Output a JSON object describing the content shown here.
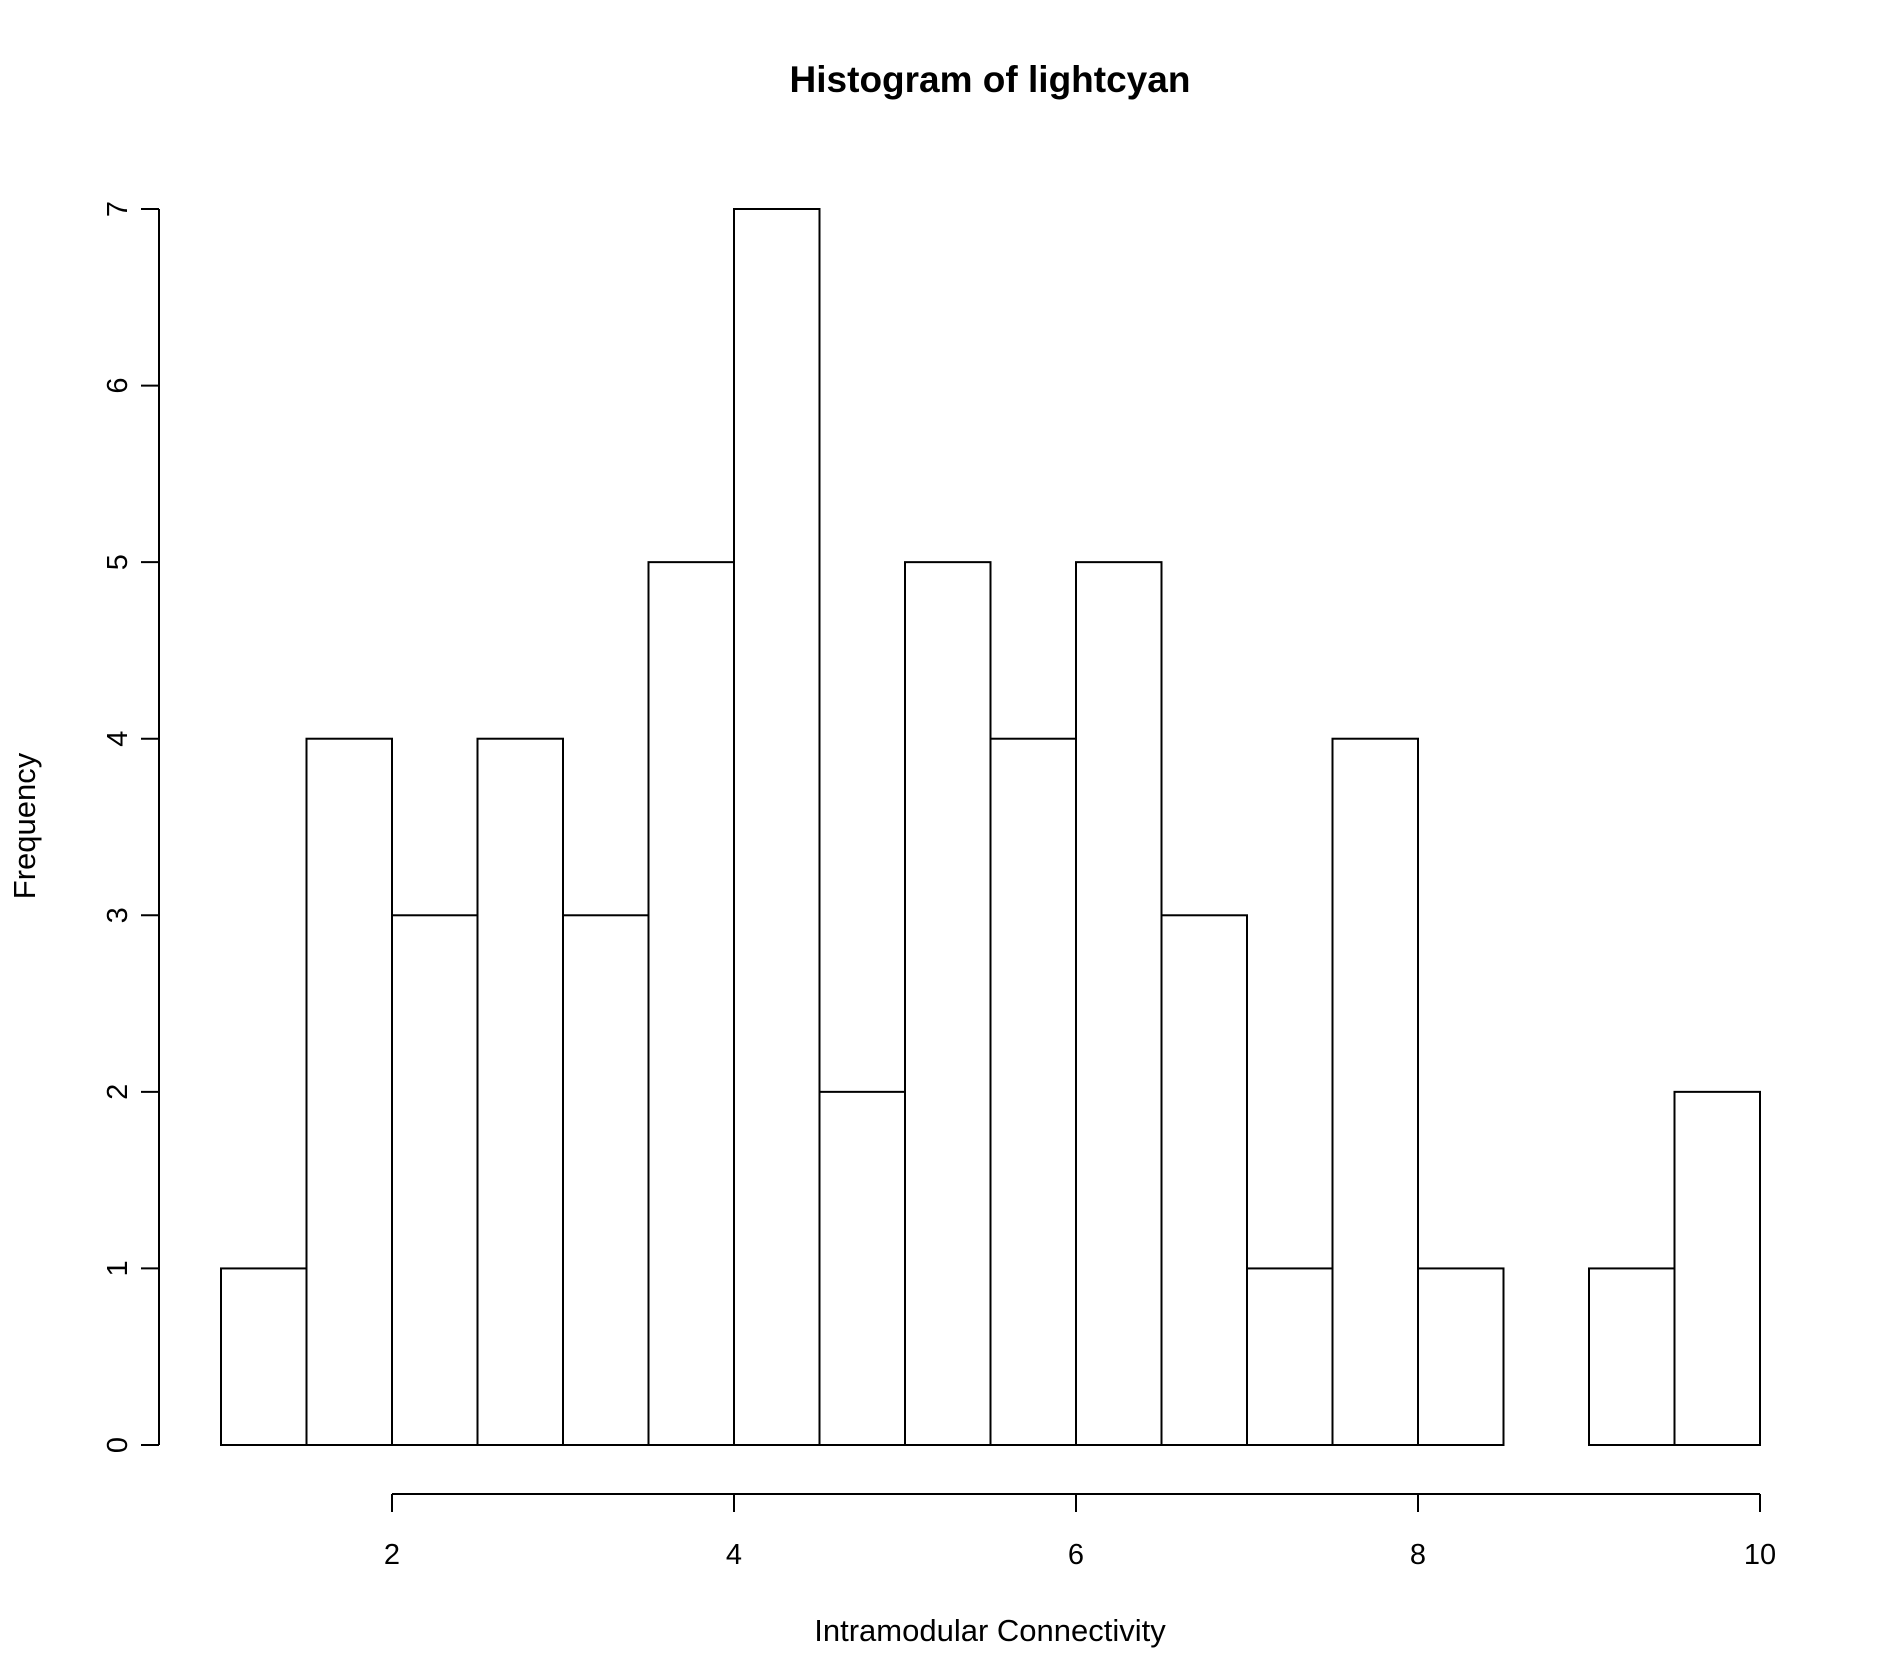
{
  "chart_data": {
    "type": "bar",
    "title": "Histogram of lightcyan",
    "xlabel": "Intramodular Connectivity",
    "ylabel": "Frequency",
    "bins": [
      {
        "start": 1.0,
        "end": 1.5,
        "count": 1
      },
      {
        "start": 1.5,
        "end": 2.0,
        "count": 4
      },
      {
        "start": 2.0,
        "end": 2.5,
        "count": 3
      },
      {
        "start": 2.5,
        "end": 3.0,
        "count": 4
      },
      {
        "start": 3.0,
        "end": 3.5,
        "count": 3
      },
      {
        "start": 3.5,
        "end": 4.0,
        "count": 5
      },
      {
        "start": 4.0,
        "end": 4.5,
        "count": 7
      },
      {
        "start": 4.5,
        "end": 5.0,
        "count": 2
      },
      {
        "start": 5.0,
        "end": 5.5,
        "count": 5
      },
      {
        "start": 5.5,
        "end": 6.0,
        "count": 4
      },
      {
        "start": 6.0,
        "end": 6.5,
        "count": 5
      },
      {
        "start": 6.5,
        "end": 7.0,
        "count": 3
      },
      {
        "start": 7.0,
        "end": 7.5,
        "count": 1
      },
      {
        "start": 7.5,
        "end": 8.0,
        "count": 4
      },
      {
        "start": 8.0,
        "end": 8.5,
        "count": 1
      },
      {
        "start": 8.5,
        "end": 9.0,
        "count": 0
      },
      {
        "start": 9.0,
        "end": 9.5,
        "count": 1
      },
      {
        "start": 9.5,
        "end": 10.0,
        "count": 2
      }
    ],
    "xlim": [
      1.0,
      10.0
    ],
    "ylim": [
      0,
      7
    ],
    "xticks": [
      2,
      4,
      6,
      8,
      10
    ],
    "yticks": [
      0,
      1,
      2,
      3,
      4,
      5,
      6,
      7
    ],
    "grid": false,
    "bar_fill": "#ffffff",
    "bar_stroke": "#000000"
  }
}
